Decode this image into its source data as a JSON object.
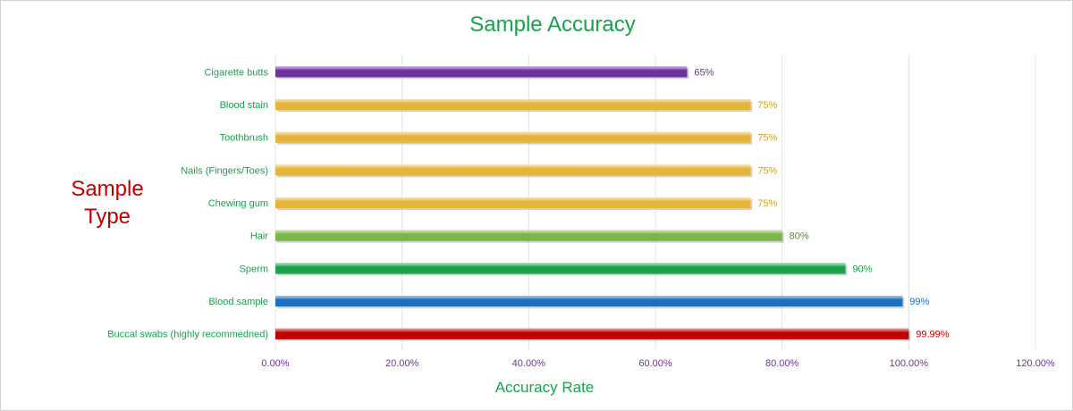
{
  "chart_data": {
    "type": "bar",
    "orientation": "horizontal",
    "title": "Sample Accuracy",
    "xlabel": "Accuracy Rate",
    "ylabel": "Sample Type",
    "categories": [
      "Cigarette butts",
      "Blood stain",
      "Toothbrush",
      "Nails (Fingers/Toes)",
      "Chewing gum",
      "Hair",
      "Sperm",
      "Blood sample",
      "Buccal swabs (highly recommedned)"
    ],
    "values": [
      65,
      75,
      75,
      75,
      75,
      80,
      90,
      99,
      99.99
    ],
    "data_labels": [
      "65%",
      "75%",
      "75%",
      "75%",
      "75%",
      "80%",
      "90%",
      "99%",
      "99.99%"
    ],
    "colors": [
      "#7030a0",
      "#e5b53a",
      "#e5b53a",
      "#e5b53a",
      "#e5b53a",
      "#7ab648",
      "#16a34a",
      "#1f6fbf",
      "#c00000"
    ],
    "label_colors": [
      "#7030a0",
      "#c9a227",
      "#c9a227",
      "#c9a227",
      "#c9a227",
      "#5b8c2a",
      "#17a24b",
      "#1f6fbf",
      "#c00000"
    ],
    "xlim": [
      0,
      120
    ],
    "x_ticks": [
      0,
      20,
      40,
      60,
      80,
      100,
      120
    ],
    "x_tick_labels": [
      "0.00%",
      "20.00%",
      "40.00%",
      "60.00%",
      "80.00%",
      "100.00%",
      "120.00%"
    ],
    "grid": true,
    "legend": "none"
  },
  "colors": {
    "title": "#17a24b",
    "y_axis_title": "#c00000",
    "tick_label": "#7030a0",
    "gridline": "#e3e3e3"
  }
}
